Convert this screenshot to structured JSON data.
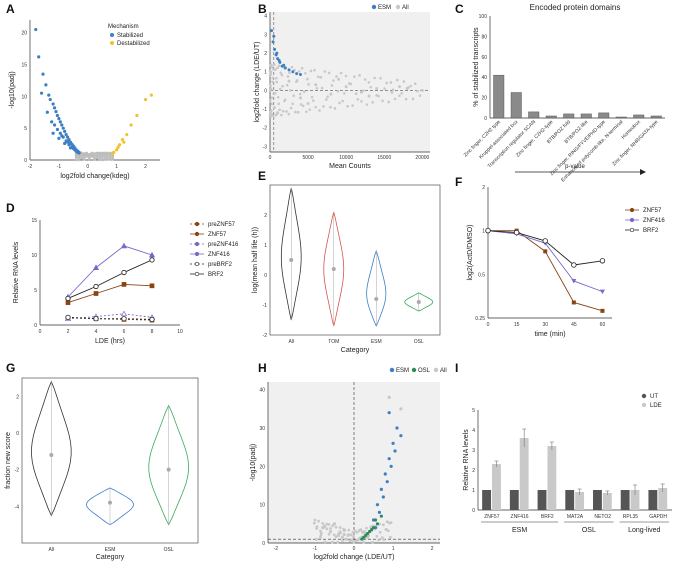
{
  "figure": {
    "panel_labels": [
      "A",
      "B",
      "C",
      "D",
      "E",
      "F",
      "G",
      "H",
      "I"
    ]
  },
  "chart_data": [
    {
      "panel": "A",
      "type": "scatter",
      "xlabel": "log2fold change(kdeg)",
      "ylabel": "-log10(padj)",
      "xlim": [
        -2,
        2.5
      ],
      "ylim": [
        0,
        22
      ],
      "xticks": [
        "-2",
        "-1",
        "0",
        "1",
        "2"
      ],
      "yticks": [
        "0",
        "5",
        "10",
        "15",
        "20"
      ],
      "legend_title": "Mechanism",
      "legend": [
        "Stabilized",
        "Destabilized"
      ],
      "colors": {
        "Stabilized": "#3d7fc4",
        "Destabilized": "#f2c12e",
        "ns": "#bdbdbd"
      },
      "series": [
        {
          "name": "Stabilized",
          "x": [
            -1.8,
            -1.7,
            -1.55,
            -1.45,
            -1.35,
            -1.3,
            -1.2,
            -1.15,
            -1.1,
            -1.05,
            -1.0,
            -0.95,
            -0.9,
            -0.85,
            -0.8,
            -0.75,
            -0.7,
            -0.65,
            -0.6,
            -0.55,
            -0.5,
            -0.45,
            -0.4,
            -0.35,
            -0.3,
            -1.25,
            -1.05,
            -0.95,
            -0.85,
            -0.75,
            -0.65,
            -0.55,
            -0.45,
            -1.4,
            -1.15,
            -0.9,
            -0.7,
            -0.5,
            -0.35,
            -1.6,
            -1.2,
            -1.0,
            -0.8,
            -0.6,
            -0.4,
            -0.3
          ],
          "y": [
            20.5,
            16.2,
            13.5,
            11.8,
            10.2,
            9.5,
            8.8,
            8.2,
            7.6,
            7.0,
            6.5,
            6.0,
            5.5,
            5.0,
            4.5,
            4.0,
            3.6,
            3.2,
            2.8,
            2.5,
            2.2,
            1.9,
            1.6,
            1.4,
            1.2,
            6.0,
            4.8,
            4.2,
            3.6,
            3.0,
            2.4,
            2.0,
            1.6,
            7.5,
            5.5,
            3.8,
            2.8,
            1.8,
            1.2,
            10.5,
            4.2,
            3.4,
            2.6,
            1.9,
            1.4,
            1.1
          ]
        },
        {
          "name": "Destabilized",
          "x": [
            0.9,
            1.0,
            1.1,
            1.2,
            1.35,
            1.5,
            1.7,
            2.0,
            2.2,
            0.85,
            1.05,
            1.25
          ],
          "y": [
            1.2,
            1.6,
            2.4,
            3.2,
            4.0,
            5.5,
            7.0,
            9.5,
            10.2,
            1.0,
            2.0,
            2.8
          ]
        }
      ]
    },
    {
      "panel": "B",
      "type": "scatter",
      "xlabel": "Mean Counts",
      "ylabel": "log2fold change (LDE/UT)",
      "xlim": [
        0,
        21000
      ],
      "ylim": [
        -3.3,
        4.2
      ],
      "xticks": [
        "0",
        "5000",
        "10000",
        "15000",
        "20000"
      ],
      "yticks": [
        "-3",
        "-2",
        "-1",
        "0",
        "1",
        "2",
        "3",
        "4"
      ],
      "legend": [
        "ESM",
        "All"
      ],
      "colors": {
        "ESM": "#3d7fc4",
        "All": "#c8c8c8"
      },
      "series": [
        {
          "name": "ESM",
          "x": [
            200,
            400,
            600,
            800,
            1000,
            1300,
            1600,
            2000,
            2500,
            3000,
            3500,
            4000,
            500,
            900,
            1200,
            1800
          ],
          "y": [
            3.2,
            2.6,
            2.2,
            1.9,
            1.7,
            1.5,
            1.3,
            1.2,
            1.1,
            1.0,
            0.9,
            0.85,
            2.9,
            2.0,
            1.6,
            1.35
          ]
        },
        {
          "name": "All",
          "x": [
            1000,
            2500,
            4000,
            6000,
            8000,
            10000,
            12000,
            14000,
            16000,
            18000,
            20000,
            5000,
            9000,
            13000,
            17000
          ],
          "y": [
            -1.2,
            0.5,
            -0.4,
            0.3,
            -0.2,
            0.2,
            -0.1,
            0.1,
            -0.1,
            0.1,
            0.0,
            -0.7,
            0.6,
            -0.3,
            0.2
          ]
        }
      ]
    },
    {
      "panel": "C",
      "type": "bar",
      "title": "Encoded protein domains",
      "ylabel": "% of stabilized transcripts",
      "xlabel": "p-value",
      "ylim": [
        0,
        100
      ],
      "yticks": [
        "0",
        "20",
        "40",
        "60",
        "80",
        "100"
      ],
      "categories": [
        "Zinc finger, C2H2 type",
        "Kruppel-associated box",
        "Transcription regulator SCAN",
        "Zinc finger, C2H2-type",
        "BTB/POZ fold",
        "BTB/POZ-like",
        "Zinc finger, RING/FYVE/PHD-type",
        "Enhancer of polycomb-like, N-terminal",
        "Homeobox",
        "Zinc finger, NHR/GATA-type"
      ],
      "values": [
        42,
        25,
        6,
        2,
        4,
        4,
        5,
        1,
        3,
        2
      ]
    },
    {
      "panel": "D",
      "type": "line",
      "xlabel": "LDE (hrs)",
      "ylabel": "Relative RNA levels",
      "x": [
        2,
        4,
        6,
        8
      ],
      "xlim": [
        0,
        10
      ],
      "ylim": [
        0,
        15
      ],
      "xticks": [
        "0",
        "2",
        "4",
        "6",
        "8",
        "10"
      ],
      "yticks": [
        "0",
        "5",
        "10",
        "15"
      ],
      "series": [
        {
          "name": "preZNF57",
          "values": [
            1.0,
            0.9,
            0.8,
            0.7
          ],
          "color": "#8b4513",
          "dashed": true,
          "marker": "square"
        },
        {
          "name": "ZNF57",
          "values": [
            3.2,
            4.5,
            5.8,
            5.6
          ],
          "color": "#8b4513",
          "dashed": false,
          "marker": "square"
        },
        {
          "name": "preZNF416",
          "values": [
            0.9,
            1.2,
            1.6,
            1.1
          ],
          "color": "#7b68c8",
          "dashed": true,
          "marker": "triangle"
        },
        {
          "name": "ZNF416",
          "values": [
            4.0,
            8.2,
            11.3,
            10.0
          ],
          "color": "#7b68c8",
          "dashed": false,
          "marker": "triangle"
        },
        {
          "name": "preBRF2",
          "values": [
            1.1,
            0.9,
            0.9,
            0.8
          ],
          "color": "#222222",
          "dashed": true,
          "marker": "circle"
        },
        {
          "name": "BRF2",
          "values": [
            3.8,
            5.5,
            7.5,
            9.3
          ],
          "color": "#222222",
          "dashed": false,
          "marker": "circle"
        }
      ]
    },
    {
      "panel": "E",
      "type": "violin",
      "xlabel": "Category",
      "ylabel": "log(mean half life (h))",
      "categories": [
        "All",
        "TOM",
        "ESM",
        "OSL"
      ],
      "ylim": [
        -2,
        3
      ],
      "yticks": [
        "-2",
        "-1",
        "0",
        "1",
        "2"
      ],
      "medians": [
        0.5,
        0.2,
        -0.8,
        -0.9
      ],
      "ranges": [
        [
          -1.5,
          2.9
        ],
        [
          -1.7,
          2.1
        ],
        [
          -1.7,
          0.8
        ],
        [
          -1.2,
          -0.6
        ]
      ],
      "colors": [
        "#333333",
        "#d9534f",
        "#3d7fc4",
        "#3aaa5c"
      ]
    },
    {
      "panel": "F",
      "type": "line",
      "xlabel": "time (min)",
      "ylabel": "log2(ActD/DMSO)",
      "x": [
        0,
        15,
        30,
        45,
        60
      ],
      "xlim": [
        0,
        65
      ],
      "ylim": [
        0.25,
        2
      ],
      "xticks": [
        "0",
        "15",
        "30",
        "45",
        "60"
      ],
      "yticks": [
        "0.25",
        "0.5",
        "1",
        "2"
      ],
      "series": [
        {
          "name": "ZNF57",
          "values": [
            1.0,
            1.0,
            0.72,
            0.32,
            0.28
          ],
          "color": "#8b4513",
          "marker": "square"
        },
        {
          "name": "ZNF416",
          "values": [
            1.0,
            0.95,
            0.82,
            0.45,
            0.38
          ],
          "color": "#7b68c8",
          "marker": "triangle"
        },
        {
          "name": "BRF2",
          "values": [
            1.0,
            0.97,
            0.85,
            0.58,
            0.62
          ],
          "color": "#222222",
          "marker": "circle"
        }
      ]
    },
    {
      "panel": "G",
      "type": "violin",
      "xlabel": "Category",
      "ylabel": "fraction new score",
      "categories": [
        "All",
        "ESM",
        "OSL"
      ],
      "ylim": [
        -6,
        3
      ],
      "yticks": [
        "-4",
        "-2",
        "0",
        "2"
      ],
      "medians": [
        -1.2,
        -3.8,
        -2.0
      ],
      "ranges": [
        [
          -4.5,
          2.8
        ],
        [
          -5.0,
          -3.0
        ],
        [
          -5.0,
          1.5
        ]
      ],
      "colors": [
        "#333333",
        "#3d7fc4",
        "#3aaa5c"
      ]
    },
    {
      "panel": "H",
      "type": "scatter",
      "xlabel": "log2fold change (LDE/UT)",
      "ylabel": "-log10(padj)",
      "xlim": [
        -2.2,
        2.2
      ],
      "ylim": [
        0,
        42
      ],
      "xticks": [
        "-2",
        "-1",
        "0",
        "1",
        "2"
      ],
      "yticks": [
        "0",
        "10",
        "20",
        "30",
        "40"
      ],
      "legend": [
        "ESM",
        "OSL",
        "All"
      ],
      "colors": {
        "ESM": "#3d7fc4",
        "OSL": "#2e8b57",
        "All": "#c8c8c8"
      },
      "series": [
        {
          "name": "ESM",
          "x": [
            0.5,
            0.6,
            0.7,
            0.8,
            0.9,
            1.0,
            1.1,
            0.65,
            0.75,
            0.85,
            0.95,
            1.05,
            1.2,
            0.55,
            0.9
          ],
          "y": [
            6,
            10,
            14,
            18,
            22,
            26,
            30,
            8,
            12,
            16,
            20,
            24,
            28,
            4,
            34
          ]
        },
        {
          "name": "OSL",
          "x": [
            0.2,
            0.3,
            0.4,
            0.5,
            0.6,
            0.7,
            0.35,
            0.45,
            0.55,
            0.25
          ],
          "y": [
            1,
            2,
            3,
            4,
            5,
            7,
            2.5,
            3.5,
            6,
            1.5
          ]
        },
        {
          "name": "All",
          "x": [
            -0.8,
            -0.6,
            -0.4,
            -0.3,
            -0.2,
            -0.1,
            0.0,
            0.1,
            0.2,
            0.3,
            0.9,
            1.2,
            -0.5,
            -0.25,
            0.15
          ],
          "y": [
            4,
            3,
            2,
            1.5,
            1,
            0.6,
            0.3,
            0.8,
            1.5,
            2.5,
            38,
            35,
            5,
            2.2,
            1.2
          ]
        }
      ]
    },
    {
      "panel": "I",
      "type": "bar",
      "ylabel": "Relative RNA levels",
      "categories": [
        "ZNF57",
        "ZNF416",
        "BRF2",
        "MAT2A",
        "NETO2",
        "RPL35",
        "GAPDH"
      ],
      "groups": [
        {
          "label": "ESM",
          "members": [
            "ZNF57",
            "ZNF416",
            "BRF2"
          ]
        },
        {
          "label": "OSL",
          "members": [
            "MAT2A",
            "NETO2"
          ]
        },
        {
          "label": "Long-lived",
          "members": [
            "RPL35",
            "GAPDH"
          ]
        }
      ],
      "ylim": [
        0,
        5
      ],
      "yticks": [
        "0",
        "1",
        "2",
        "3",
        "4",
        "5"
      ],
      "series": [
        {
          "name": "UT",
          "values": [
            1,
            1,
            1,
            1,
            1,
            1,
            1
          ],
          "color": "#555555"
        },
        {
          "name": "LDE",
          "values": [
            2.3,
            3.6,
            3.2,
            0.9,
            0.85,
            1.0,
            1.1
          ],
          "color": "#c9c9c9"
        }
      ],
      "errors": [
        0.15,
        0.45,
        0.2,
        0.15,
        0.1,
        0.25,
        0.2
      ]
    }
  ]
}
